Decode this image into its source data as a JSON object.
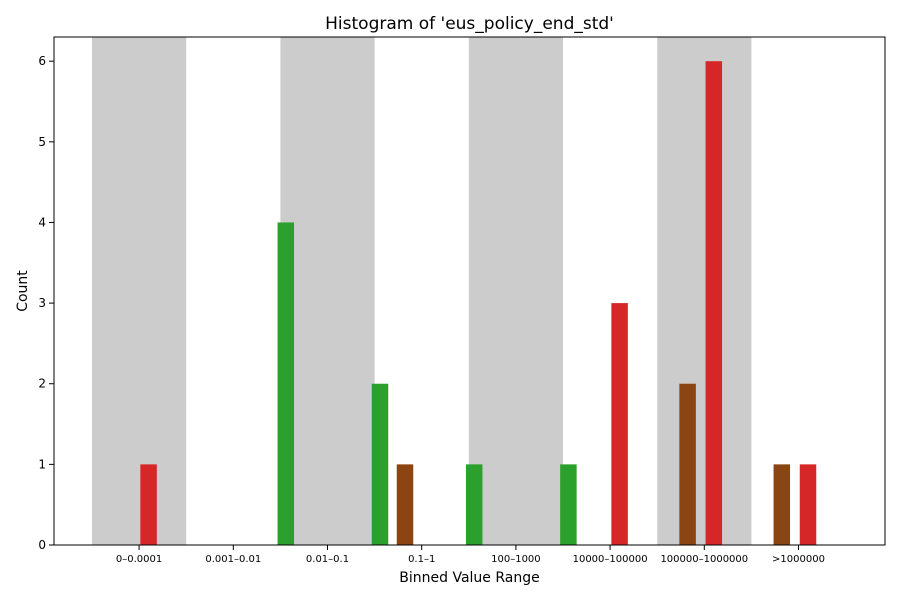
{
  "chart_data": {
    "type": "bar",
    "title": "Histogram of 'eus_policy_end_std'",
    "xlabel": "Binned Value Range",
    "ylabel": "Count",
    "ylim": [
      0,
      6.3
    ],
    "yticks": [
      0,
      1,
      2,
      3,
      4,
      5,
      6
    ],
    "grid": false,
    "legend": "none",
    "categories": [
      "0–0.0001",
      "0.001–0.01",
      "0.01–0.1",
      "0.1–1",
      "100–1000",
      "10000–100000",
      "100000–1000000",
      ">1000000"
    ],
    "shaded_bins": [
      "0–0.0001",
      "0.01–0.1",
      "100–1000",
      "100000–1000000"
    ],
    "series": [
      {
        "color": "#d62728",
        "values": [
          1,
          0,
          0,
          0,
          0,
          3,
          6,
          1
        ]
      },
      {
        "color": "#2ca02c",
        "values": [
          0,
          4,
          2,
          1,
          1,
          0,
          0,
          0
        ]
      },
      {
        "color": "#8b4513",
        "values": [
          0,
          0,
          1,
          0,
          0,
          2,
          1,
          0
        ]
      }
    ],
    "colors": {
      "shade": "#cccccc",
      "axis": "#000000"
    }
  }
}
